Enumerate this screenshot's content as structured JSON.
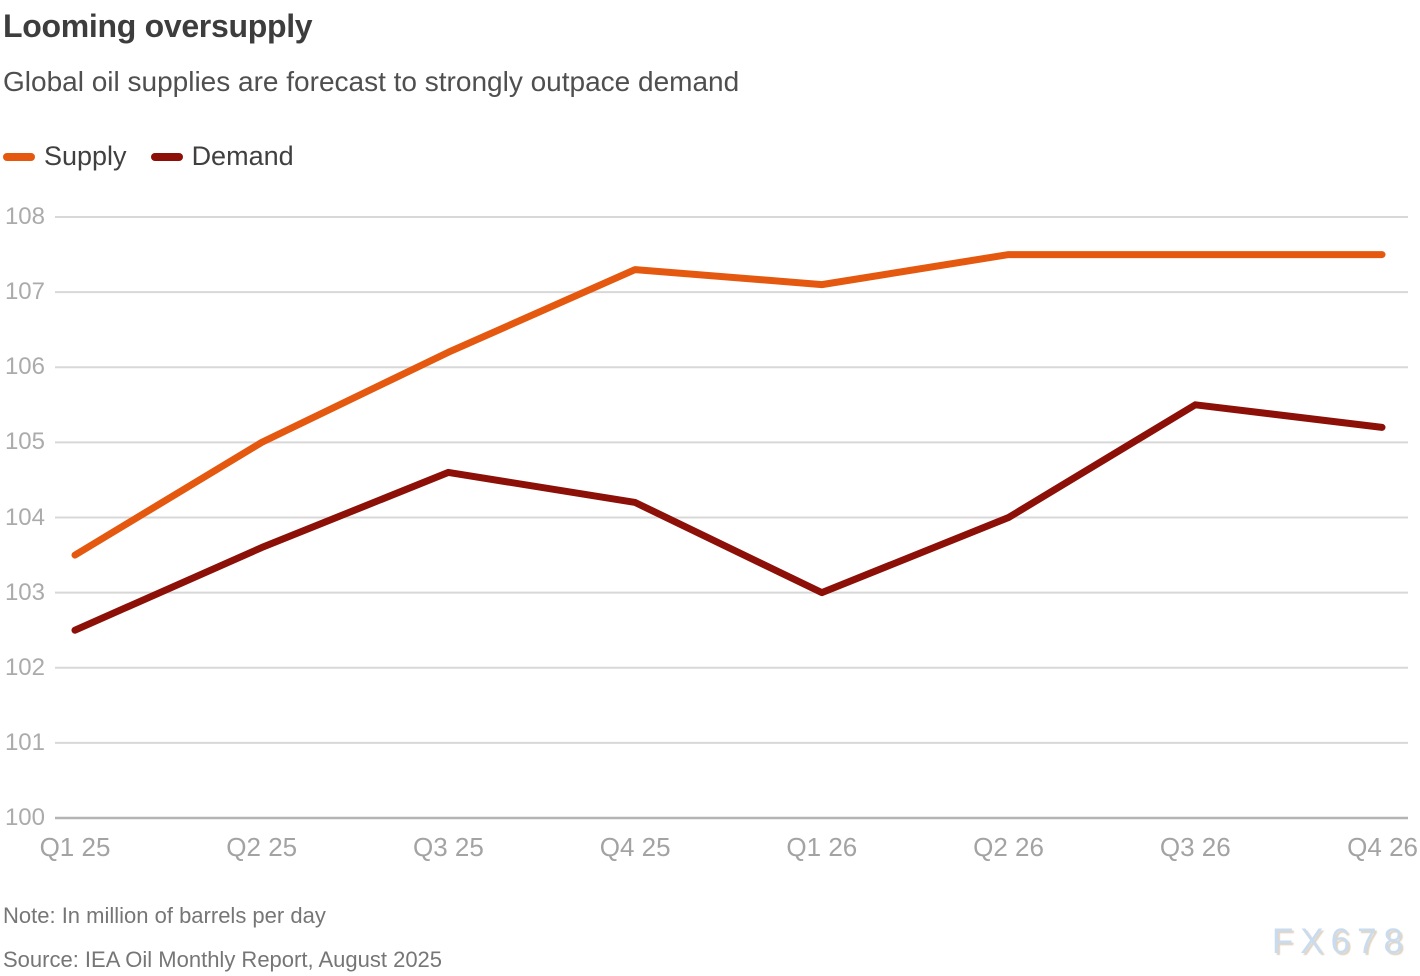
{
  "header": {
    "title": "Looming oversupply",
    "subtitle": "Global oil supplies are forecast to strongly outpace demand"
  },
  "chart_data": {
    "type": "line",
    "categories": [
      "Q1 25",
      "Q2 25",
      "Q3 25",
      "Q4 25",
      "Q1 26",
      "Q2 26",
      "Q3 26",
      "Q4 26"
    ],
    "series": [
      {
        "name": "Supply",
        "color": "#e4590f",
        "values": [
          103.5,
          105.0,
          106.2,
          107.3,
          107.1,
          107.5,
          107.5,
          107.5
        ]
      },
      {
        "name": "Demand",
        "color": "#8c1007",
        "values": [
          102.5,
          103.6,
          104.6,
          104.2,
          103.0,
          104.0,
          105.5,
          105.2
        ]
      }
    ],
    "ylim": [
      100,
      108
    ],
    "y_ticks": [
      100,
      101,
      102,
      103,
      104,
      105,
      106,
      107,
      108
    ],
    "grid": "horizontal",
    "legend_position": "top-left",
    "unit_note": "In million of barrels per day",
    "gridline_color": "#d8d8d8",
    "baseline_color": "#b4b4b4"
  },
  "footer": {
    "note": "Note: In million of barrels per day",
    "source": "Source: IEA Oil Monthly Report, August 2025",
    "watermark": "FX678"
  }
}
